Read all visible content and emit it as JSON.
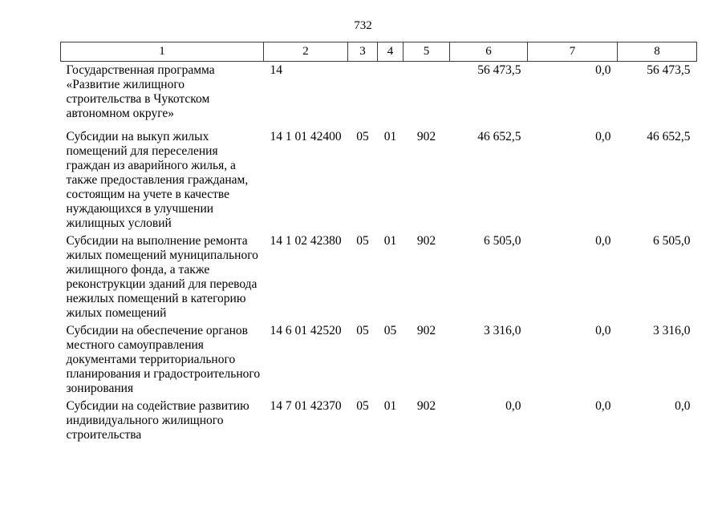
{
  "page": {
    "number": "732",
    "background": "#ffffff",
    "text_color": "#000000",
    "border_color": "#3d3d3d"
  },
  "table": {
    "header": [
      "1",
      "2",
      "3",
      "4",
      "5",
      "6",
      "7",
      "8"
    ],
    "rows": [
      {
        "name": "Государственная программа «Развитие жилищного строительства в Чукотском автономном округе»",
        "code": "14",
        "col3": "",
        "col4": "",
        "col5": "",
        "col6": "56 473,5",
        "col7": "0,0",
        "col8": "56 473,5"
      },
      {
        "name": "Субсидии на выкуп жилых помещений для переселения граждан из аварийного жилья, а также предоставления гражданам, состоящим на учете в качестве нуждающихся в улучшении жилищных условий",
        "code": "14 1 01 42400",
        "col3": "05",
        "col4": "01",
        "col5": "902",
        "col6": "46 652,5",
        "col7": "0,0",
        "col8": "46 652,5"
      },
      {
        "name": "Субсидии на выполнение ремонта жилых помещений муниципального жилищного фонда, а также реконструкции зданий для перевода нежилых помещений в категорию жилых помещений",
        "code": "14 1 02 42380",
        "col3": "05",
        "col4": "01",
        "col5": "902",
        "col6": "6 505,0",
        "col7": "0,0",
        "col8": "6 505,0"
      },
      {
        "name": "Субсидии на обеспечение органов местного самоуправления документами территориального планирования и градостроительного зонирования",
        "code": "14 6 01 42520",
        "col3": "05",
        "col4": "05",
        "col5": "902",
        "col6": "3 316,0",
        "col7": "0,0",
        "col8": "3 316,0"
      },
      {
        "name": "Субсидии на содействие развитию индивидуального жилищного строительства",
        "code": "14 7 01 42370",
        "col3": "05",
        "col4": "01",
        "col5": "902",
        "col6": "0,0",
        "col7": "0,0",
        "col8": "0,0"
      }
    ]
  }
}
